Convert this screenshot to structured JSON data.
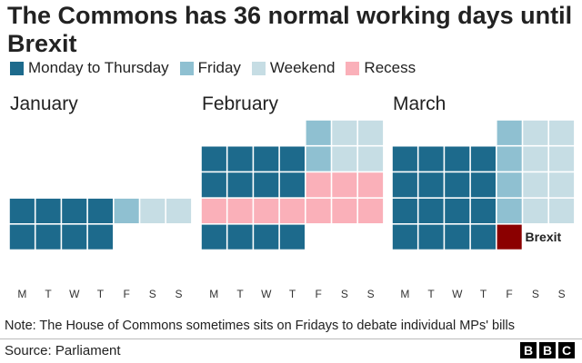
{
  "title": "The Commons has 36 normal working days until Brexit",
  "note": "Note: The House of Commons sometimes sits on Fridays to debate individual MPs' bills",
  "source": "Source: Parliament",
  "logo": [
    "B",
    "B",
    "C"
  ],
  "chart_data": {
    "type": "table",
    "legend": [
      {
        "key": "working",
        "label": "Monday to Thursday",
        "color": "#1d6a8c"
      },
      {
        "key": "friday",
        "label": "Friday",
        "color": "#8fc0d1"
      },
      {
        "key": "weekend",
        "label": "Weekend",
        "color": "#c6dde4"
      },
      {
        "key": "recess",
        "label": "Recess",
        "color": "#fab0b9"
      }
    ],
    "brexit_color": "#8b0000",
    "day_labels": [
      "M",
      "T",
      "W",
      "T",
      "F",
      "S",
      "S"
    ],
    "months": [
      {
        "name": "January",
        "weeks": [
          [
            "",
            "",
            "",
            "",
            "",
            "",
            ""
          ],
          [
            "",
            "",
            "",
            "",
            "",
            "",
            ""
          ],
          [
            "",
            "",
            "",
            "",
            "",
            "",
            ""
          ],
          [
            "working",
            "working",
            "working",
            "working",
            "friday",
            "weekend",
            "weekend"
          ],
          [
            "working",
            "working",
            "working",
            "working",
            "",
            "",
            ""
          ]
        ]
      },
      {
        "name": "February",
        "weeks": [
          [
            "",
            "",
            "",
            "",
            "friday",
            "weekend",
            "weekend"
          ],
          [
            "working",
            "working",
            "working",
            "working",
            "friday",
            "weekend",
            "weekend"
          ],
          [
            "working",
            "working",
            "working",
            "working",
            "recess",
            "recess",
            "recess"
          ],
          [
            "recess",
            "recess",
            "recess",
            "recess",
            "recess",
            "recess",
            "recess"
          ],
          [
            "working",
            "working",
            "working",
            "working",
            "",
            "",
            ""
          ]
        ]
      },
      {
        "name": "March",
        "weeks": [
          [
            "",
            "",
            "",
            "",
            "friday",
            "weekend",
            "weekend"
          ],
          [
            "working",
            "working",
            "working",
            "working",
            "friday",
            "weekend",
            "weekend"
          ],
          [
            "working",
            "working",
            "working",
            "working",
            "friday",
            "weekend",
            "weekend"
          ],
          [
            "working",
            "working",
            "working",
            "working",
            "friday",
            "weekend",
            "weekend"
          ],
          [
            "working",
            "working",
            "working",
            "working",
            "brexit",
            "",
            ""
          ]
        ]
      }
    ],
    "annotation": {
      "label": "Brexit",
      "month": "March",
      "week": 4,
      "day": 4
    }
  }
}
